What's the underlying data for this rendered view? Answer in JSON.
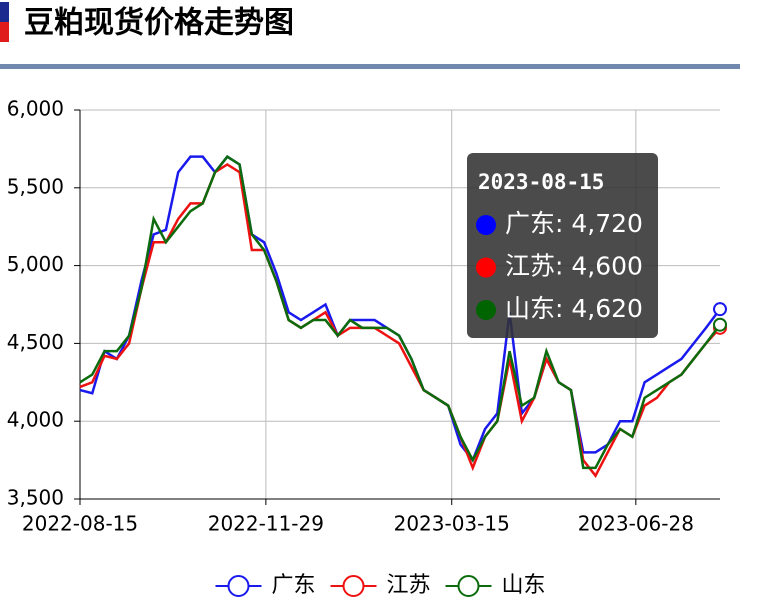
{
  "chart_data": {
    "type": "line",
    "title": "豆粕现货价格走势图",
    "x": [
      "2022-08-15",
      "2022-08-22",
      "2022-08-29",
      "2022-09-05",
      "2022-09-12",
      "2022-09-19",
      "2022-09-26",
      "2022-10-03",
      "2022-10-10",
      "2022-10-17",
      "2022-10-24",
      "2022-10-31",
      "2022-11-07",
      "2022-11-14",
      "2022-11-21",
      "2022-11-28",
      "2022-12-05",
      "2022-12-12",
      "2022-12-19",
      "2022-12-26",
      "2023-01-02",
      "2023-01-09",
      "2023-01-16",
      "2023-01-23",
      "2023-01-30",
      "2023-02-06",
      "2023-02-13",
      "2023-02-20",
      "2023-02-27",
      "2023-03-06",
      "2023-03-13",
      "2023-03-20",
      "2023-03-27",
      "2023-04-03",
      "2023-04-10",
      "2023-04-17",
      "2023-04-24",
      "2023-05-01",
      "2023-05-08",
      "2023-05-15",
      "2023-05-22",
      "2023-05-29",
      "2023-06-05",
      "2023-06-12",
      "2023-06-19",
      "2023-06-26",
      "2023-07-03",
      "2023-07-10",
      "2023-07-17",
      "2023-07-24",
      "2023-07-31",
      "2023-08-07",
      "2023-08-15"
    ],
    "series": [
      {
        "name": "广东",
        "color": "#1a1aee",
        "values": [
          4200,
          4180,
          4450,
          4400,
          4550,
          4900,
          5200,
          5230,
          5600,
          5700,
          5700,
          5600,
          5700,
          5650,
          5200,
          5150,
          4950,
          4700,
          4650,
          4700,
          4750,
          4550,
          4650,
          4650,
          4650,
          4600,
          4550,
          4400,
          4200,
          4150,
          4100,
          3850,
          3750,
          3950,
          4050,
          4700,
          4050,
          4150,
          4400,
          4250,
          4200,
          3800,
          3800,
          3850,
          4000,
          4000,
          4250,
          4300,
          4350,
          4400,
          4500,
          4600,
          4720
        ]
      },
      {
        "name": "江苏",
        "color": "#ee1111",
        "values": [
          4220,
          4250,
          4420,
          4400,
          4500,
          4850,
          5150,
          5150,
          5300,
          5400,
          5400,
          5600,
          5650,
          5600,
          5100,
          5100,
          4900,
          4650,
          4600,
          4650,
          4700,
          4550,
          4600,
          4600,
          4600,
          4550,
          4500,
          4350,
          4200,
          4150,
          4100,
          3900,
          3700,
          3900,
          4000,
          4400,
          4000,
          4150,
          4400,
          4250,
          4200,
          3750,
          3650,
          3800,
          3950,
          3900,
          4100,
          4150,
          4250,
          4300,
          4400,
          4500,
          4600
        ]
      },
      {
        "name": "山东",
        "color": "#0c6b0c",
        "values": [
          4250,
          4300,
          4450,
          4450,
          4550,
          4850,
          5300,
          5150,
          5250,
          5350,
          5400,
          5600,
          5700,
          5650,
          5200,
          5100,
          4900,
          4650,
          4600,
          4650,
          4650,
          4550,
          4650,
          4600,
          4600,
          4600,
          4550,
          4400,
          4200,
          4150,
          4100,
          3900,
          3750,
          3900,
          4000,
          4450,
          4100,
          4150,
          4450,
          4250,
          4200,
          3700,
          3700,
          3850,
          3950,
          3900,
          4150,
          4200,
          4250,
          4300,
          4400,
          4500,
          4620
        ]
      }
    ],
    "xlim": [
      "2022-08-15",
      "2023-08-15"
    ],
    "xticks": [
      "2022-08-15",
      "2022-11-29",
      "2023-03-15",
      "2023-06-28"
    ],
    "ylim": [
      3500,
      6000
    ],
    "yticks": [
      {
        "value": 3500,
        "label": "3,500"
      },
      {
        "value": 4000,
        "label": "4,000"
      },
      {
        "value": 4500,
        "label": "4,500"
      },
      {
        "value": 5000,
        "label": "5,000"
      },
      {
        "value": 5500,
        "label": "5,500"
      },
      {
        "value": 6000,
        "label": "6,000"
      }
    ],
    "grid": true,
    "legend": "bottom",
    "tooltip": {
      "items": [
        {
          "label": "广东: 4,720",
          "value": 4720
        },
        {
          "label": "江苏: 4,600",
          "value": 4600
        },
        {
          "label": "山东: 4,620",
          "value": 4620
        }
      ]
    }
  }
}
